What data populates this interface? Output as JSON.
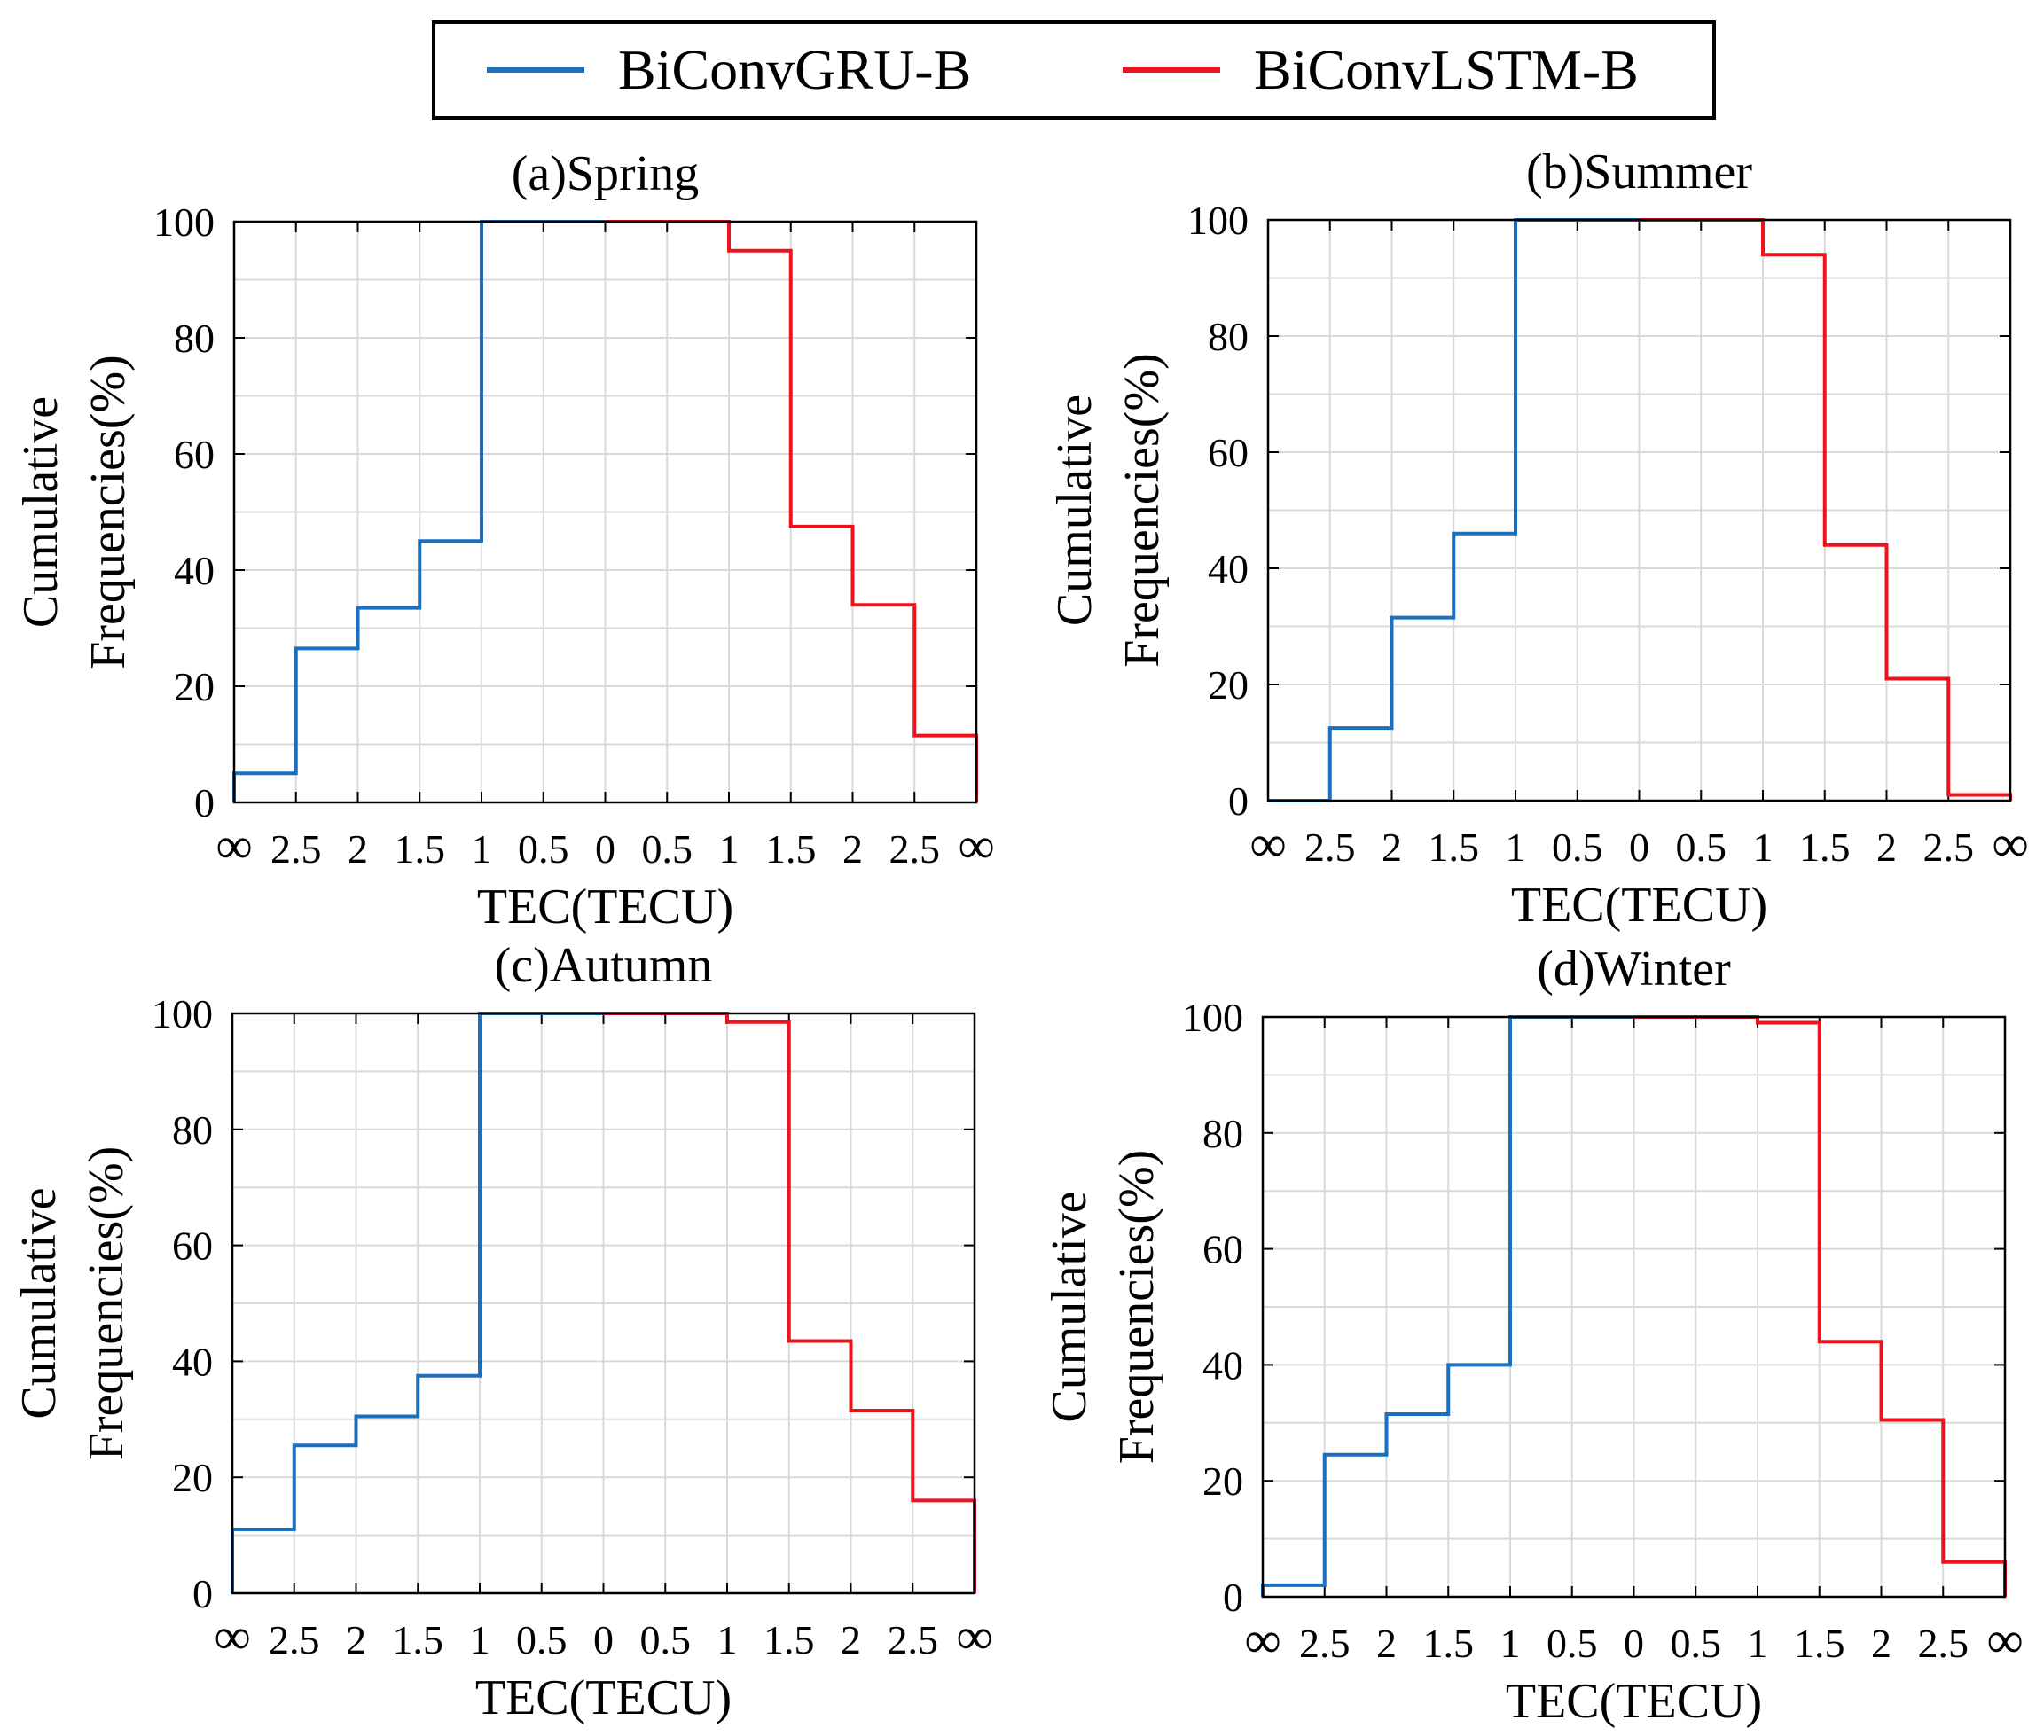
{
  "legend": {
    "items": [
      {
        "label": "BiConvGRU-B",
        "color": "#1a6fbf"
      },
      {
        "label": "BiConvLSTM-B",
        "color": "#e8141e"
      }
    ]
  },
  "chart_data": [
    {
      "type": "line",
      "title": "(a)Spring",
      "xlabel": "TEC(TECU)",
      "ylabel": [
        "Cumulative",
        "Frequencies(%)"
      ],
      "x_ticks": [
        "∞",
        "2.5",
        "2",
        "1.5",
        "1",
        "0.5",
        "0",
        "0.5",
        "1",
        "1.5",
        "2",
        "2.5",
        "∞"
      ],
      "y_ticks": [
        "0",
        "20",
        "40",
        "60",
        "80",
        "100"
      ],
      "ylim": [
        0,
        100
      ],
      "grid": true,
      "series": [
        {
          "name": "BiConvGRU-B",
          "color": "#1a6fbf",
          "steps": [
            5,
            26.5,
            33.5,
            45,
            100,
            100
          ]
        },
        {
          "name": "BiConvLSTM-B",
          "color": "#e8141e",
          "steps": [
            100,
            100,
            95,
            47.5,
            34,
            11.5
          ]
        }
      ]
    },
    {
      "type": "line",
      "title": "(b)Summer",
      "xlabel": "TEC(TECU)",
      "ylabel": [
        "Cumulative",
        "Frequencies(%)"
      ],
      "x_ticks": [
        "∞",
        "2.5",
        "2",
        "1.5",
        "1",
        "0.5",
        "0",
        "0.5",
        "1",
        "1.5",
        "2",
        "2.5",
        "∞"
      ],
      "y_ticks": [
        "0",
        "20",
        "40",
        "60",
        "80",
        "100"
      ],
      "ylim": [
        0,
        100
      ],
      "grid": true,
      "series": [
        {
          "name": "BiConvGRU-B",
          "color": "#1a6fbf",
          "steps": [
            0,
            12.5,
            31.5,
            46,
            100,
            100
          ]
        },
        {
          "name": "BiConvLSTM-B",
          "color": "#e8141e",
          "steps": [
            100,
            100,
            94,
            44,
            21,
            1
          ]
        }
      ]
    },
    {
      "type": "line",
      "title": "(c)Autumn",
      "xlabel": "TEC(TECU)",
      "ylabel": [
        "Cumulative",
        "Frequencies(%)"
      ],
      "x_ticks": [
        "∞",
        "2.5",
        "2",
        "1.5",
        "1",
        "0.5",
        "0",
        "0.5",
        "1",
        "1.5",
        "2",
        "2.5",
        "∞"
      ],
      "y_ticks": [
        "0",
        "20",
        "40",
        "60",
        "80",
        "100"
      ],
      "ylim": [
        0,
        100
      ],
      "grid": true,
      "series": [
        {
          "name": "BiConvGRU-B",
          "color": "#1a6fbf",
          "steps": [
            11,
            25.5,
            30.5,
            37.5,
            100,
            100
          ]
        },
        {
          "name": "BiConvLSTM-B",
          "color": "#e8141e",
          "steps": [
            100,
            100,
            98.5,
            43.5,
            31.5,
            16
          ]
        }
      ]
    },
    {
      "type": "line",
      "title": "(d)Winter",
      "xlabel": "TEC(TECU)",
      "ylabel": [
        "Cumulative",
        "Frequencies(%)"
      ],
      "x_ticks": [
        "∞",
        "2.5",
        "2",
        "1.5",
        "1",
        "0.5",
        "0",
        "0.5",
        "1",
        "1.5",
        "2",
        "2.5",
        "∞"
      ],
      "y_ticks": [
        "0",
        "20",
        "40",
        "60",
        "80",
        "100"
      ],
      "ylim": [
        0,
        100
      ],
      "grid": true,
      "series": [
        {
          "name": "BiConvGRU-B",
          "color": "#1a6fbf",
          "steps": [
            2,
            24.5,
            31.5,
            40,
            100,
            100
          ]
        },
        {
          "name": "BiConvLSTM-B",
          "color": "#e8141e",
          "steps": [
            100,
            100,
            99,
            44,
            30.5,
            6
          ]
        }
      ]
    }
  ]
}
